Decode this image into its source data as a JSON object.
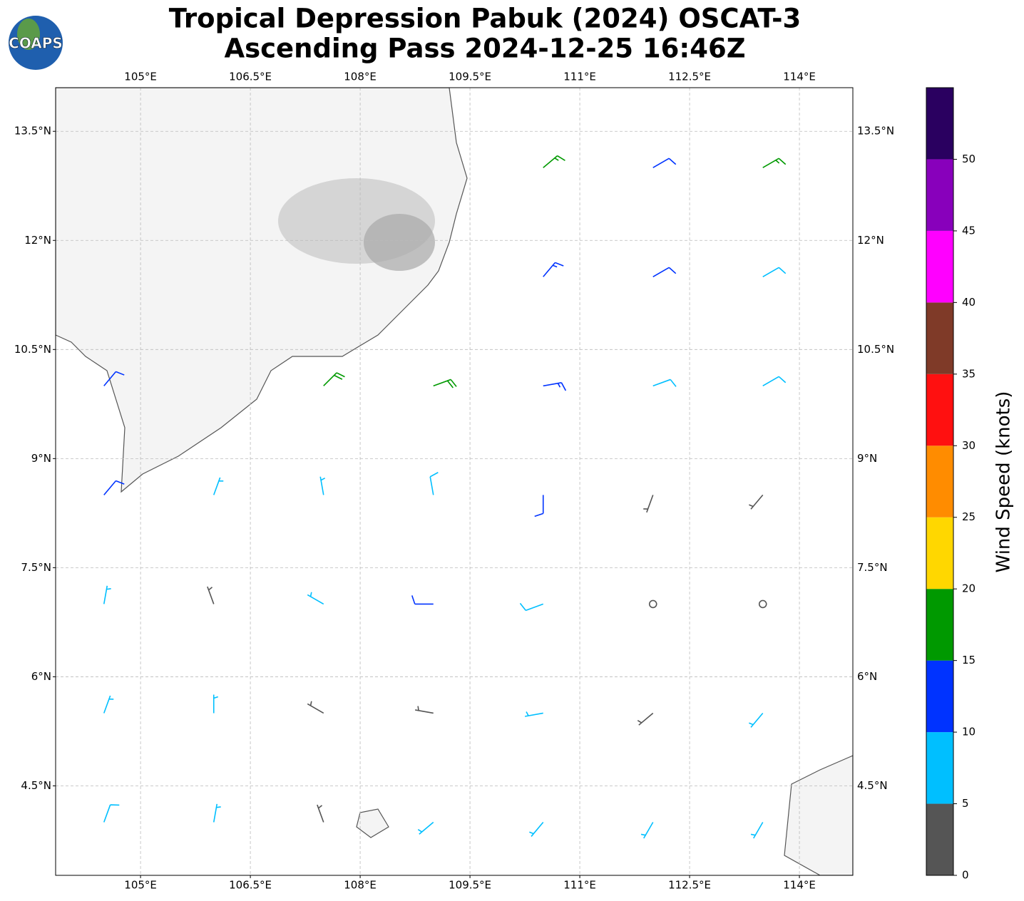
{
  "header": {
    "logo": "COAPS",
    "title": [
      "Tropical Depression Pabuk (2024) OSCAT-3",
      "Ascending Pass 2024-12-25 16:46Z"
    ]
  },
  "map": {
    "type": "wind-barbs",
    "xlim": [
      103.84,
      114.73
    ],
    "ylim": [
      3.27,
      14.1
    ],
    "xticks": [
      {
        "value": 105,
        "label": "105°E"
      },
      {
        "value": 106.5,
        "label": "106.5°E"
      },
      {
        "value": 108,
        "label": "108°E"
      },
      {
        "value": 109.5,
        "label": "109.5°E"
      },
      {
        "value": 111,
        "label": "111°E"
      },
      {
        "value": 112.5,
        "label": "112.5°E"
      },
      {
        "value": 114,
        "label": "114°E"
      }
    ],
    "yticks": [
      {
        "value": 4.5,
        "label": "4.5°N"
      },
      {
        "value": 6,
        "label": "6°N"
      },
      {
        "value": 7.5,
        "label": "7.5°N"
      },
      {
        "value": 9,
        "label": "9°N"
      },
      {
        "value": 10.5,
        "label": "10.5°N"
      },
      {
        "value": 12,
        "label": "12°N"
      },
      {
        "value": 13.5,
        "label": "13.5°N"
      }
    ],
    "grid": true,
    "barbs": [
      {
        "lon": 110.5,
        "lat": 13,
        "speed": 15,
        "dir": 50
      },
      {
        "lon": 112,
        "lat": 13,
        "speed": 12,
        "dir": 60
      },
      {
        "lon": 113.5,
        "lat": 13,
        "speed": 15,
        "dir": 60
      },
      {
        "lon": 110.5,
        "lat": 11.5,
        "speed": 13,
        "dir": 40
      },
      {
        "lon": 112,
        "lat": 11.5,
        "speed": 11,
        "dir": 60
      },
      {
        "lon": 113.5,
        "lat": 11.5,
        "speed": 9,
        "dir": 60
      },
      {
        "lon": 104.5,
        "lat": 10,
        "speed": 12,
        "dir": 40
      },
      {
        "lon": 107.5,
        "lat": 10,
        "speed": 18,
        "dir": 45
      },
      {
        "lon": 109,
        "lat": 10,
        "speed": 18,
        "dir": 70
      },
      {
        "lon": 110.5,
        "lat": 10,
        "speed": 14,
        "dir": 80
      },
      {
        "lon": 112,
        "lat": 10,
        "speed": 9,
        "dir": 70
      },
      {
        "lon": 113.5,
        "lat": 10,
        "speed": 8,
        "dir": 60
      },
      {
        "lon": 104.5,
        "lat": 8.5,
        "speed": 12,
        "dir": 40
      },
      {
        "lon": 106,
        "lat": 8.5,
        "speed": 7,
        "dir": 20
      },
      {
        "lon": 107.5,
        "lat": 8.5,
        "speed": 7,
        "dir": 350
      },
      {
        "lon": 109,
        "lat": 8.5,
        "speed": 8,
        "dir": 350
      },
      {
        "lon": 110.5,
        "lat": 8.5,
        "speed": 12,
        "dir": 180
      },
      {
        "lon": 112,
        "lat": 8.5,
        "speed": 4,
        "dir": 200
      },
      {
        "lon": 113.5,
        "lat": 8.5,
        "speed": 4,
        "dir": 220
      },
      {
        "lon": 104.5,
        "lat": 7,
        "speed": 7,
        "dir": 10
      },
      {
        "lon": 106,
        "lat": 7,
        "speed": 4,
        "dir": 340
      },
      {
        "lon": 107.5,
        "lat": 7,
        "speed": 7,
        "dir": 300
      },
      {
        "lon": 109,
        "lat": 7,
        "speed": 12,
        "dir": 270
      },
      {
        "lon": 110.5,
        "lat": 7,
        "speed": 9,
        "dir": 250
      },
      {
        "lon": 112,
        "lat": 7,
        "speed": 2,
        "dir": 0
      },
      {
        "lon": 113.5,
        "lat": 7,
        "speed": 2,
        "dir": 0
      },
      {
        "lon": 104.5,
        "lat": 5.5,
        "speed": 7,
        "dir": 20
      },
      {
        "lon": 106,
        "lat": 5.5,
        "speed": 6,
        "dir": 0
      },
      {
        "lon": 107.5,
        "lat": 5.5,
        "speed": 4,
        "dir": 300
      },
      {
        "lon": 109,
        "lat": 5.5,
        "speed": 3,
        "dir": 280
      },
      {
        "lon": 110.5,
        "lat": 5.5,
        "speed": 6,
        "dir": 260
      },
      {
        "lon": 112,
        "lat": 5.5,
        "speed": 4,
        "dir": 230
      },
      {
        "lon": 113.5,
        "lat": 5.5,
        "speed": 6,
        "dir": 220
      },
      {
        "lon": 104.5,
        "lat": 4,
        "speed": 8,
        "dir": 20
      },
      {
        "lon": 106,
        "lat": 4,
        "speed": 6,
        "dir": 10
      },
      {
        "lon": 107.5,
        "lat": 4,
        "speed": 4,
        "dir": 340
      },
      {
        "lon": 109,
        "lat": 4,
        "speed": 7,
        "dir": 230
      },
      {
        "lon": 110.5,
        "lat": 4,
        "speed": 7,
        "dir": 220
      },
      {
        "lon": 112,
        "lat": 4,
        "speed": 7,
        "dir": 210
      },
      {
        "lon": 113.5,
        "lat": 4,
        "speed": 7,
        "dir": 210
      }
    ]
  },
  "colorbar": {
    "label": "Wind Speed (knots)",
    "lim": [
      0,
      55
    ],
    "bounds": [
      0,
      5,
      10,
      15,
      20,
      25,
      30,
      35,
      40,
      45,
      50,
      55
    ],
    "colors": [
      "#555555",
      "#00bfff",
      "#0033ff",
      "#009900",
      "#ffd700",
      "#ff8c00",
      "#ff1010",
      "#7f3a28",
      "#ff00ff",
      "#8800bb",
      "#2a0060"
    ],
    "ticks": [
      0,
      5,
      10,
      15,
      20,
      25,
      30,
      35,
      40,
      45,
      50
    ]
  }
}
